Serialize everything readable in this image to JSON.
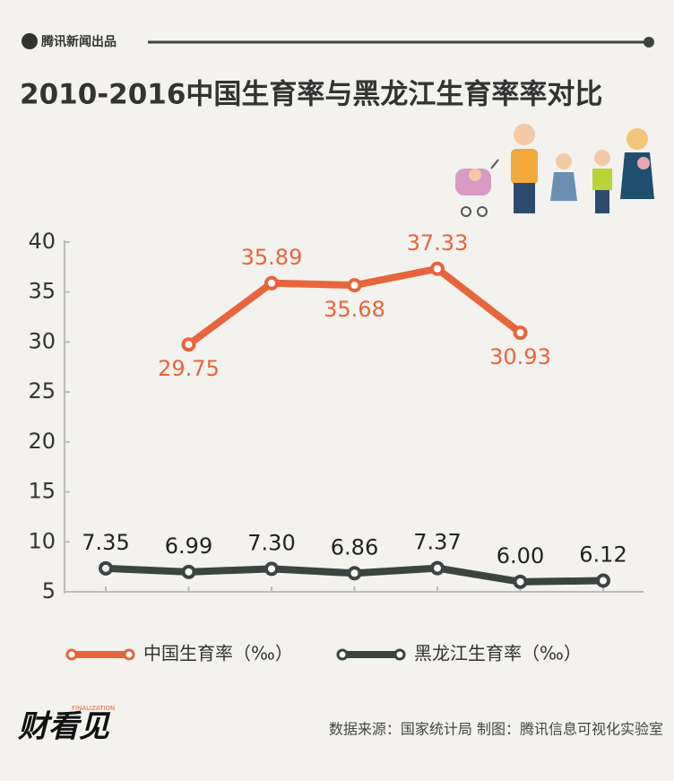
{
  "brand": "腾讯新闻出品",
  "logo": "财看见",
  "logo_subtitle": "FINALIZATION",
  "source": "数据来源：国家统计局  制图：腾讯信息可视化实验室",
  "chart_data": {
    "type": "line",
    "title": "2010-2016中国生育率与黑龙江生育率率对比",
    "categories": [
      null,
      null,
      null,
      null,
      null,
      null,
      null
    ],
    "series": [
      {
        "name": "中国生育率（‰）",
        "color": "#e8643a",
        "values": [
          null,
          29.75,
          35.89,
          35.68,
          37.33,
          30.93,
          null
        ]
      },
      {
        "name": "黑龙江生育率（‰）",
        "color": "#3c4442",
        "values": [
          7.35,
          6.99,
          7.3,
          6.86,
          7.37,
          6.0,
          6.12
        ],
        "value_labels": [
          "7.35",
          "6.99",
          "7.30",
          "6.86",
          "7.37",
          "6.00",
          "6.12"
        ]
      }
    ],
    "ylim": [
      5,
      40
    ],
    "yticks": [
      5,
      10,
      15,
      20,
      25,
      30,
      35,
      40
    ]
  }
}
